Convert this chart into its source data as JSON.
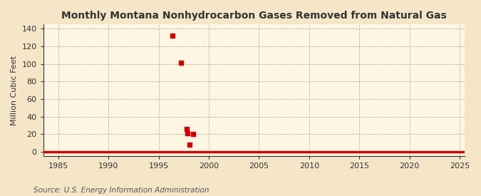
{
  "title": "Monthly Montana Nonhydrocarbon Gases Removed from Natural Gas",
  "ylabel": "Million Cubic Feet",
  "source": "Source: U.S. Energy Information Administration",
  "background_color": "#f5e6c8",
  "plot_background_color": "#fdf6e3",
  "line_color": "#cc0000",
  "axis_color": "#333333",
  "grid_color": "#aaaaaa",
  "xlim": [
    1983.5,
    2025.5
  ],
  "ylim": [
    -5,
    145
  ],
  "yticks": [
    0,
    20,
    40,
    60,
    80,
    100,
    120,
    140
  ],
  "xticks": [
    1985,
    1990,
    1995,
    2000,
    2005,
    2010,
    2015,
    2020,
    2025
  ],
  "xtick_labels": [
    "1985",
    "1990",
    "1995",
    "2000",
    "2005",
    "2010",
    "2015",
    "2020",
    "2025"
  ],
  "scatter_years": [
    1996.4,
    1997.2,
    1997.8,
    1997.9,
    1998.1,
    1998.4
  ],
  "scatter_values": [
    132,
    101,
    26,
    21,
    8,
    20
  ],
  "baseline_x": [
    1983.5,
    2025.5
  ],
  "baseline_y": [
    0,
    0
  ],
  "marker_size": 5,
  "title_fontsize": 10,
  "label_fontsize": 8,
  "tick_fontsize": 8,
  "source_fontsize": 7.5
}
